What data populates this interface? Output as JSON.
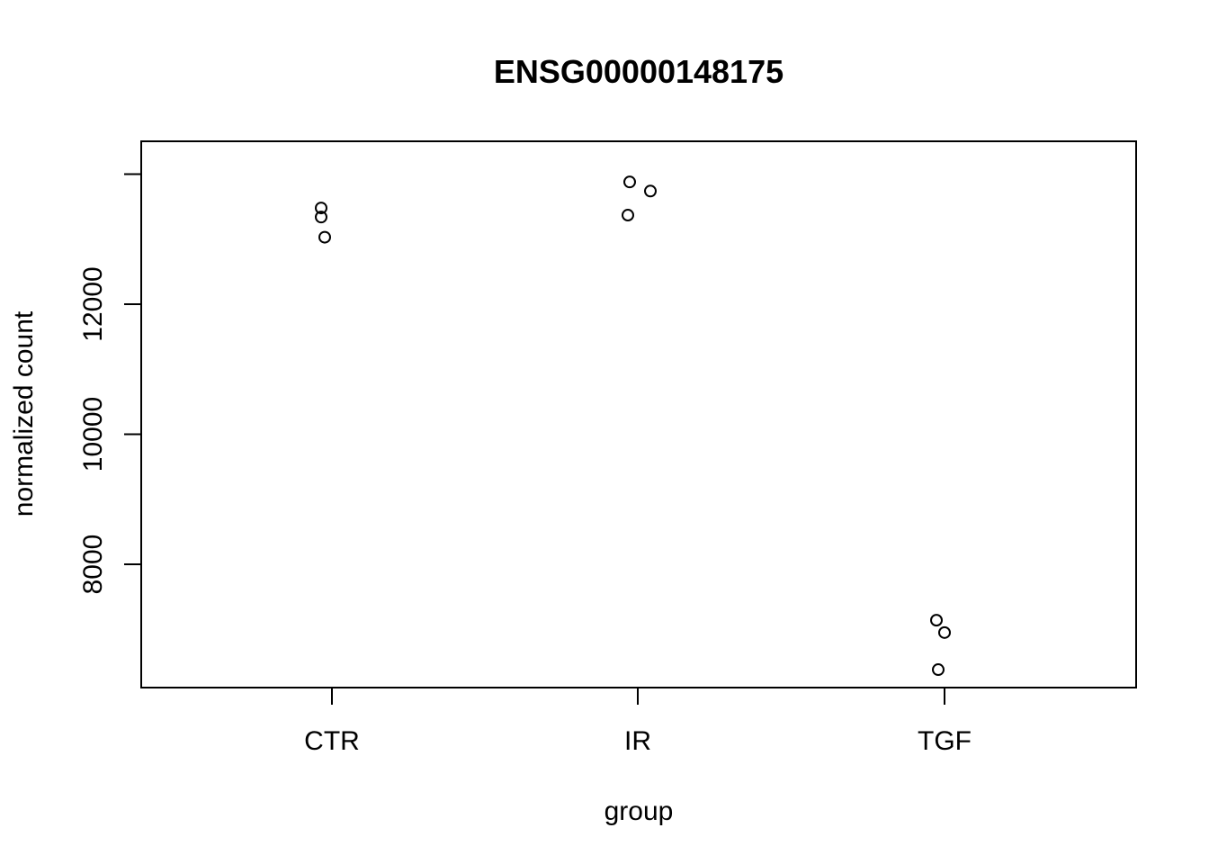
{
  "chart_data": {
    "type": "scatter",
    "title": "ENSG00000148175",
    "xlabel": "group",
    "ylabel": "normalized count",
    "categories": [
      "CTR",
      "IR",
      "TGF"
    ],
    "y_ticks": [
      8000,
      10000,
      12000
    ],
    "y_tick_labels": [
      "8000",
      "10000",
      "12000"
    ],
    "ylim": [
      6300,
      14200
    ],
    "grid": false,
    "series": [
      {
        "points": [
          {
            "group": "CTR",
            "y": 13480
          },
          {
            "group": "CTR",
            "y": 13340
          },
          {
            "group": "CTR",
            "y": 13030
          },
          {
            "group": "IR",
            "y": 13880
          },
          {
            "group": "IR",
            "y": 13740
          },
          {
            "group": "IR",
            "y": 13370
          },
          {
            "group": "TGF",
            "y": 7140
          },
          {
            "group": "TGF",
            "y": 6950
          },
          {
            "group": "TGF",
            "y": 6380
          }
        ]
      }
    ]
  }
}
